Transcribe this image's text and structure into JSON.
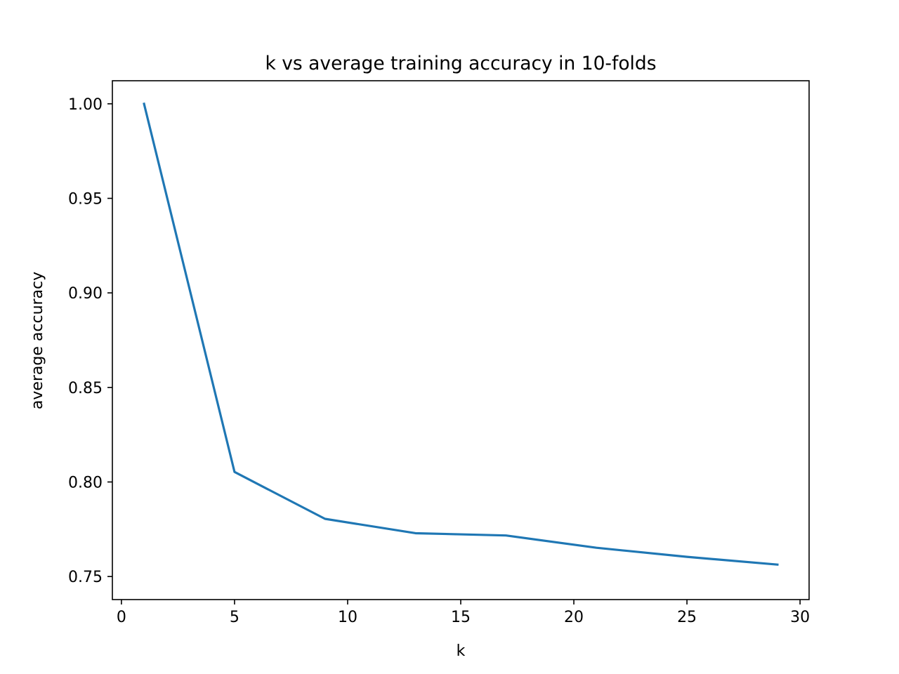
{
  "chart_data": {
    "type": "line",
    "title": "k vs average training accuracy in 10-folds",
    "xlabel": "k",
    "ylabel": "average accuracy",
    "xlim": [
      -0.4,
      30.4
    ],
    "ylim": [
      0.7378,
      1.0122
    ],
    "xticks": [
      0,
      5,
      10,
      15,
      20,
      25,
      30
    ],
    "xtick_labels": [
      "0",
      "5",
      "10",
      "15",
      "20",
      "25",
      "30"
    ],
    "yticks": [
      0.75,
      0.8,
      0.85,
      0.9,
      0.95,
      1.0
    ],
    "ytick_labels": [
      "0.75",
      "0.80",
      "0.85",
      "0.90",
      "0.95",
      "1.00"
    ],
    "grid": false,
    "series": [
      {
        "color": "#1f77b4",
        "x": [
          1,
          5,
          9,
          13,
          17,
          21,
          25,
          29
        ],
        "y": [
          1.0,
          0.8053,
          0.7805,
          0.7729,
          0.7717,
          0.7652,
          0.7604,
          0.7563
        ]
      }
    ]
  }
}
